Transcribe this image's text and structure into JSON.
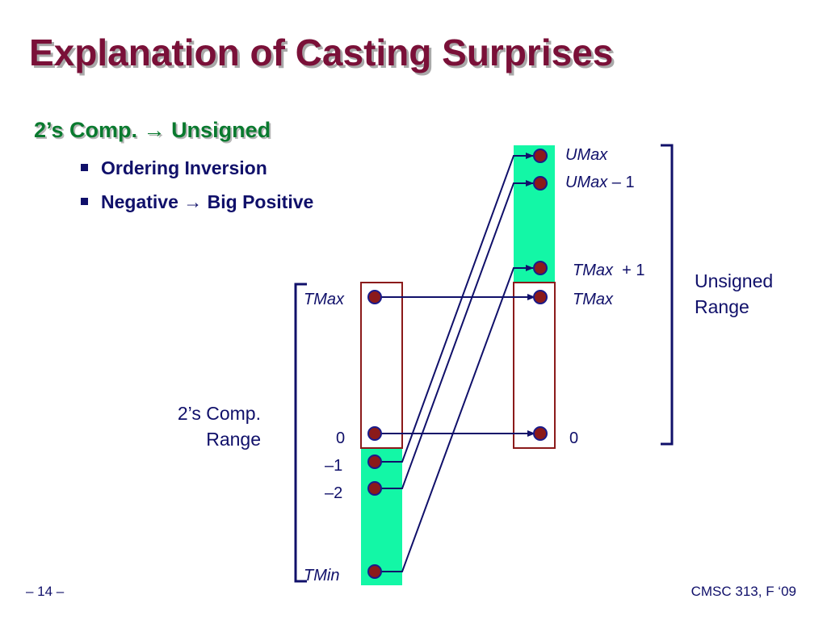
{
  "title": "Explanation of Casting Surprises",
  "subtitle": {
    "main": "2’s Comp.",
    "arrow": "→",
    "target": "Unsigned"
  },
  "bullets": [
    {
      "before": "Ordering Inversion",
      "arrow": "",
      "after": ""
    },
    {
      "before": "Negative",
      "arrow": "→",
      "after": "Big Positive"
    }
  ],
  "unsigned_labels": {
    "umax": "UMax",
    "umax_minus_1_italic": "UMax",
    "umax_minus_1_rest": " – 1",
    "tmax_plus_1_italic": "TMax",
    "tmax_plus_1_rest": "  + 1",
    "tmax": "TMax",
    "zero": "0"
  },
  "twos_labels": {
    "tmax": "TMax",
    "zero": "0",
    "minus_1": "–1",
    "minus_2": "–2",
    "tmin": "TMin"
  },
  "range_labels": {
    "twos_line1": "2’s Comp.",
    "twos_line2": "Range",
    "unsigned_line1": "Unsigned",
    "unsigned_line2": "Range"
  },
  "footer": {
    "page": "– 14 –",
    "course": "CMSC 313, F ‘09"
  },
  "colors": {
    "title": "#7a1038",
    "subtitle": "#0a7a2f",
    "text": "#10106a",
    "green_fill": "#13f7a6",
    "box_border": "#8b1a1a",
    "dot_fill": "#8b1a1a",
    "dot_stroke": "#1a1a8a",
    "arrow": "#10106a"
  }
}
